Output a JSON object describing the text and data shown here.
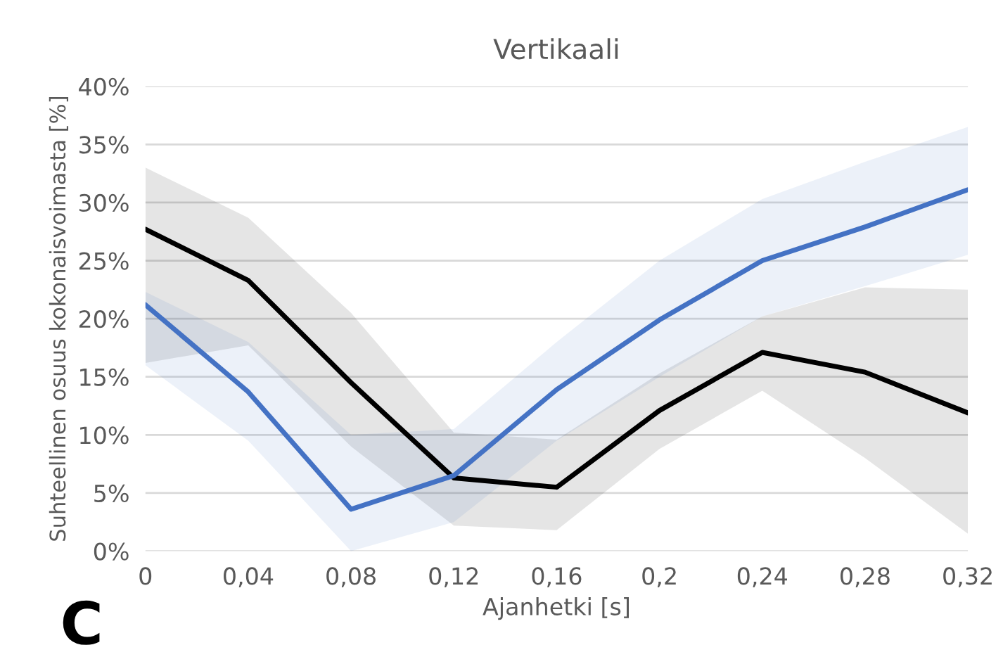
{
  "chart_data": {
    "type": "line",
    "title": "Vertikaali",
    "xlabel": "Ajanhetki [s]",
    "ylabel": "Suhteellinen osuus kokonaisvoimasta [%]",
    "x": [
      0,
      0.04,
      0.08,
      0.12,
      0.16,
      0.2,
      0.24,
      0.28,
      0.32
    ],
    "series": [
      {
        "color": "#000000",
        "values": [
          27.7,
          23.3,
          14.5,
          6.3,
          5.5,
          12.1,
          17.1,
          15.4,
          11.9
        ],
        "lower": [
          16.2,
          17.7,
          9.0,
          2.2,
          1.8,
          8.8,
          13.8,
          8.0,
          1.5
        ],
        "upper": [
          33.0,
          28.7,
          20.5,
          10.2,
          9.6,
          15.3,
          20.2,
          22.7,
          22.5
        ]
      },
      {
        "color": "#4472c4",
        "values": [
          21.2,
          13.7,
          3.6,
          6.5,
          13.9,
          19.9,
          25.0,
          27.9,
          31.1
        ],
        "lower": [
          16.0,
          9.5,
          0.0,
          2.5,
          9.5,
          15.0,
          20.2,
          22.8,
          25.5
        ],
        "upper": [
          22.3,
          18.0,
          10.0,
          10.5,
          18.0,
          25.0,
          30.3,
          33.5,
          36.5
        ]
      }
    ],
    "xlim": [
      0,
      0.32
    ],
    "xticks": [
      0,
      {
        "value": 0.04,
        "label": "0,04"
      },
      {
        "value": 0.08,
        "label": "0,08"
      },
      {
        "value": 0.12,
        "label": "0,12"
      },
      {
        "value": 0.16,
        "label": "0,16"
      },
      {
        "value": 0.2,
        "label": "0,2"
      },
      {
        "value": 0.24,
        "label": "0,24"
      },
      {
        "value": 0.28,
        "label": "0,28"
      },
      {
        "value": 0.32,
        "label": "0,32"
      }
    ],
    "ylim": [
      0,
      40
    ],
    "yticks": [
      {
        "value": 0,
        "label": "0%"
      },
      {
        "value": 5,
        "label": "5%"
      },
      {
        "value": 10,
        "label": "10%"
      },
      {
        "value": 15,
        "label": "15%"
      },
      {
        "value": 20,
        "label": "20%"
      },
      {
        "value": 25,
        "label": "25%"
      },
      {
        "value": 30,
        "label": "30%"
      },
      {
        "value": 35,
        "label": "35%"
      },
      {
        "value": 40,
        "label": "40%"
      }
    ],
    "grid": "y",
    "legend": false,
    "marker": "none",
    "line_style": "solid",
    "annotations": [
      "C"
    ]
  }
}
